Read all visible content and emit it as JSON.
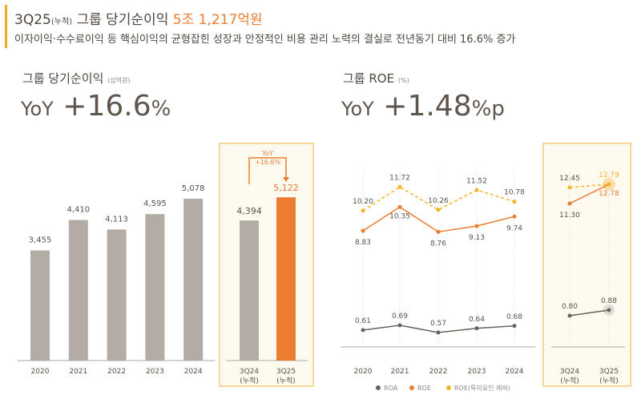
{
  "header": {
    "prefix": "3Q25",
    "prefix_note": "(누적)",
    "title": "그룹 당기순이익",
    "highlight": "5조 1,217억원",
    "subtitle": "이자이익·수수료이익 등 핵심이익의 균형잡힌 성장과  안정적인 비용 관리 노력의 결실로 전년동기 대비 16.6% 증가"
  },
  "left": {
    "title": "그룹 당기순이익",
    "unit": "(십억원)",
    "yoy_label": "YoY",
    "yoy_value": "+16.6",
    "yoy_unit": "%"
  },
  "right": {
    "title": "그룹 ROE",
    "unit": "(%)",
    "yoy_label": "YoY",
    "yoy_value": "+1.48",
    "yoy_unit": "%p"
  },
  "colors": {
    "gray": "#b2aca4",
    "orange": "#ec7c30",
    "yellow": "#f5b52a",
    "roa": "#6b625b",
    "box_bg": "#fffaf0",
    "box_border": "#f5d99a"
  },
  "chart_data": [
    {
      "type": "bar",
      "categories": [
        "2020",
        "2021",
        "2022",
        "2023",
        "2024"
      ],
      "values": [
        3455,
        4410,
        4113,
        4595,
        5078
      ],
      "labels": [
        "3,455",
        "4,410",
        "4,113",
        "4,595",
        "5,078"
      ]
    },
    {
      "type": "bar",
      "categories": [
        "3Q24\n(누적)",
        "3Q25\n(누적)"
      ],
      "cat_lines": [
        [
          "3Q24",
          "(누적)"
        ],
        [
          "3Q25",
          "(누적)"
        ]
      ],
      "values": [
        4394,
        5122
      ],
      "labels": [
        "4,394",
        "5,122"
      ],
      "annotation": [
        "YoY",
        "+16.6%"
      ]
    },
    {
      "type": "line",
      "categories": [
        "2020",
        "2021",
        "2022",
        "2023",
        "2024"
      ],
      "legend": [
        "ROA",
        "ROE",
        "ROE(특이요인 제외)"
      ],
      "series": [
        {
          "name": "ROA",
          "values": [
            0.61,
            0.69,
            0.57,
            0.64,
            0.68
          ],
          "labels": [
            "0.61",
            "0.69",
            "0.57",
            "0.64",
            "0.68"
          ]
        },
        {
          "name": "ROE",
          "values": [
            8.83,
            10.35,
            8.76,
            9.13,
            9.74
          ],
          "labels": [
            "8.83",
            "10.35",
            "8.76",
            "9.13",
            "9.74"
          ]
        },
        {
          "name": "ROE(특이요인 제외)",
          "values": [
            10.2,
            11.72,
            10.26,
            11.52,
            10.78
          ],
          "labels": [
            "10.20",
            "11.72",
            "10.26",
            "11.52",
            "10.78"
          ]
        }
      ]
    },
    {
      "type": "line",
      "categories": [
        "3Q24\n(누적)",
        "3Q25\n(누적)"
      ],
      "cat_lines": [
        [
          "3Q24",
          "(누적)"
        ],
        [
          "3Q25",
          "(누적)"
        ]
      ],
      "series": [
        {
          "name": "ROA",
          "values": [
            0.8,
            0.88
          ],
          "labels": [
            "0.80",
            "0.88"
          ]
        },
        {
          "name": "ROE",
          "values": [
            11.3,
            12.78
          ],
          "labels": [
            "11.30",
            "12.78"
          ]
        },
        {
          "name": "ROE(특이요인 제외)",
          "values": [
            12.45,
            12.79
          ],
          "labels": [
            "12.45",
            "12.79"
          ]
        }
      ]
    }
  ]
}
